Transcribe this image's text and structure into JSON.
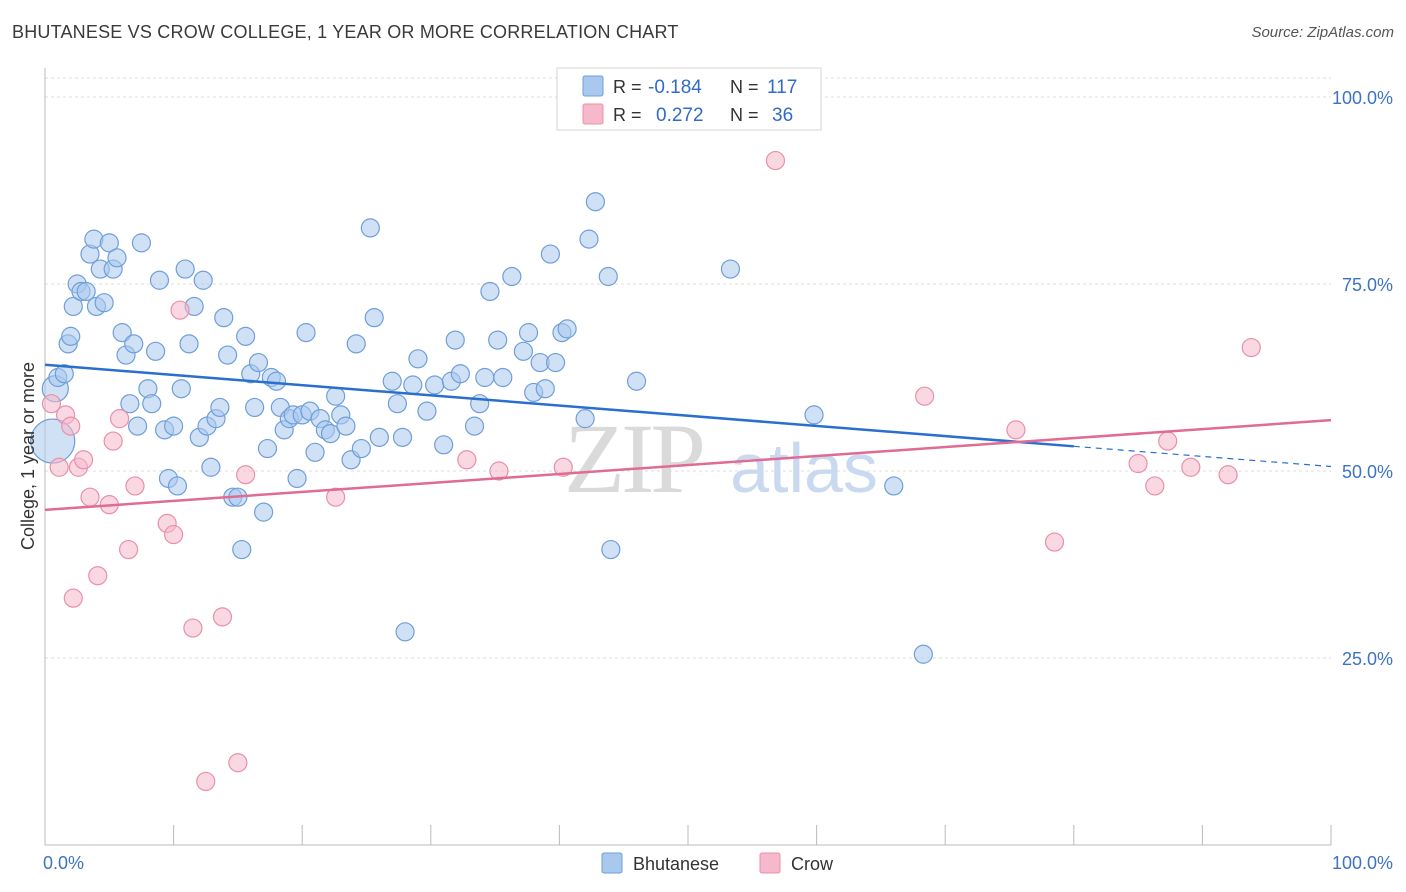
{
  "header": {
    "title": "BHUTANESE VS CROW COLLEGE, 1 YEAR OR MORE CORRELATION CHART",
    "source": "Source: ZipAtlas.com"
  },
  "colors": {
    "blue_fill": "#a9c8ee",
    "blue_stroke": "#6f9fd8",
    "blue_line": "#2b6fce",
    "pink_fill": "#f6b8cb",
    "pink_stroke": "#e890ab",
    "pink_line": "#e06b93",
    "tick_label": "#3d73c2",
    "grid": "#dddddd"
  },
  "chart_data": {
    "type": "scatter",
    "title": "BHUTANESE VS CROW COLLEGE, 1 YEAR OR MORE CORRELATION CHART",
    "xlabel": "",
    "ylabel": "College, 1 year or more",
    "xlim": [
      0,
      100
    ],
    "ylim": [
      0,
      105
    ],
    "x_tick_labels": [
      "0.0%",
      "100.0%"
    ],
    "y_ticks": [
      25,
      50,
      75,
      100
    ],
    "y_tick_labels": [
      "25.0%",
      "50.0%",
      "75.0%",
      "100.0%"
    ],
    "grid": true,
    "legend_placement": "top-center",
    "watermark": {
      "zip": "ZIP",
      "atlas": "atlas"
    },
    "stats": [
      {
        "r_label": "R =",
        "r_value": "-0.184",
        "n_label": "N =",
        "n_value": "117"
      },
      {
        "r_label": "R =",
        "r_value": "0.272",
        "n_label": "N =",
        "n_value": "36"
      }
    ],
    "series": [
      {
        "name": "Bhutanese",
        "trend": {
          "x": [
            0,
            80
          ],
          "y": [
            64.2,
            53.3
          ],
          "dashed_extension": [
            80,
            100,
            53.3,
            50.6
          ]
        },
        "points": [
          [
            0.6,
            54
          ],
          [
            0.8,
            61
          ],
          [
            1.0,
            62.5
          ],
          [
            1.5,
            63
          ],
          [
            1.8,
            67
          ],
          [
            2,
            68
          ],
          [
            2.2,
            72
          ],
          [
            2.5,
            75
          ],
          [
            2.8,
            74
          ],
          [
            3.2,
            74
          ],
          [
            3.5,
            79
          ],
          [
            3.8,
            81
          ],
          [
            4,
            72
          ],
          [
            4.3,
            77
          ],
          [
            4.6,
            72.5
          ],
          [
            5,
            80.5
          ],
          [
            5.3,
            77
          ],
          [
            5.6,
            78.5
          ],
          [
            6,
            68.5
          ],
          [
            6.3,
            65.5
          ],
          [
            6.6,
            59
          ],
          [
            6.9,
            67
          ],
          [
            7.2,
            56
          ],
          [
            7.5,
            80.5
          ],
          [
            8,
            61
          ],
          [
            8.3,
            59
          ],
          [
            8.6,
            66
          ],
          [
            8.9,
            75.5
          ],
          [
            9.3,
            55.5
          ],
          [
            9.6,
            49
          ],
          [
            10,
            56
          ],
          [
            10.3,
            48
          ],
          [
            10.6,
            61
          ],
          [
            10.9,
            77
          ],
          [
            11.2,
            67
          ],
          [
            11.6,
            72
          ],
          [
            12,
            54.5
          ],
          [
            12.3,
            75.5
          ],
          [
            12.6,
            56
          ],
          [
            12.9,
            50.5
          ],
          [
            13.3,
            57
          ],
          [
            13.6,
            58.5
          ],
          [
            13.9,
            70.5
          ],
          [
            14.2,
            65.5
          ],
          [
            14.6,
            46.5
          ],
          [
            15,
            46.5
          ],
          [
            15.3,
            39.5
          ],
          [
            15.6,
            68
          ],
          [
            16,
            63
          ],
          [
            16.3,
            58.5
          ],
          [
            16.6,
            64.5
          ],
          [
            17,
            44.5
          ],
          [
            17.3,
            53
          ],
          [
            17.6,
            62.5
          ],
          [
            18,
            62
          ],
          [
            18.3,
            58.5
          ],
          [
            18.6,
            55.5
          ],
          [
            19,
            57
          ],
          [
            19.3,
            57.5
          ],
          [
            19.6,
            49
          ],
          [
            20,
            57.5
          ],
          [
            20.3,
            68.5
          ],
          [
            20.6,
            58
          ],
          [
            21,
            52.5
          ],
          [
            21.4,
            57
          ],
          [
            21.8,
            55.5
          ],
          [
            22.2,
            55
          ],
          [
            22.6,
            60
          ],
          [
            23,
            57.5
          ],
          [
            23.4,
            56
          ],
          [
            23.8,
            51.5
          ],
          [
            24.2,
            67
          ],
          [
            24.6,
            53
          ],
          [
            25.3,
            82.5
          ],
          [
            25.6,
            70.5
          ],
          [
            26,
            54.5
          ],
          [
            27,
            62
          ],
          [
            27.4,
            59
          ],
          [
            27.8,
            54.5
          ],
          [
            28,
            28.5
          ],
          [
            28.6,
            61.5
          ],
          [
            29,
            65
          ],
          [
            29.7,
            58
          ],
          [
            30.3,
            61.5
          ],
          [
            31,
            53.5
          ],
          [
            31.6,
            62
          ],
          [
            31.9,
            67.5
          ],
          [
            32.3,
            63
          ],
          [
            33.4,
            56
          ],
          [
            33.8,
            59
          ],
          [
            34.2,
            62.5
          ],
          [
            34.6,
            74
          ],
          [
            35.2,
            67.5
          ],
          [
            35.6,
            62.5
          ],
          [
            36.3,
            76
          ],
          [
            37.2,
            66
          ],
          [
            37.6,
            68.5
          ],
          [
            38,
            60.5
          ],
          [
            38.5,
            64.5
          ],
          [
            38.9,
            61
          ],
          [
            39.3,
            79
          ],
          [
            39.7,
            64.5
          ],
          [
            40.2,
            68.5
          ],
          [
            40.6,
            69
          ],
          [
            42,
            57
          ],
          [
            42.3,
            81
          ],
          [
            42.8,
            86
          ],
          [
            43.8,
            76
          ],
          [
            44,
            39.5
          ],
          [
            46,
            62
          ],
          [
            53.3,
            77
          ],
          [
            59.8,
            57.5
          ],
          [
            66,
            48
          ],
          [
            68.3,
            25.5
          ]
        ]
      },
      {
        "name": "Crow",
        "trend": {
          "x": [
            0,
            100
          ],
          "y": [
            44.8,
            56.8
          ]
        },
        "points": [
          [
            0.5,
            59
          ],
          [
            1.1,
            50.5
          ],
          [
            1.6,
            57.5
          ],
          [
            2.0,
            56
          ],
          [
            2.2,
            33
          ],
          [
            2.6,
            50.5
          ],
          [
            3.0,
            51.5
          ],
          [
            3.5,
            46.5
          ],
          [
            4.1,
            36
          ],
          [
            5.0,
            45.5
          ],
          [
            5.3,
            54
          ],
          [
            5.8,
            57
          ],
          [
            6.5,
            39.5
          ],
          [
            7.0,
            48
          ],
          [
            9.5,
            43
          ],
          [
            10,
            41.5
          ],
          [
            10.5,
            71.5
          ],
          [
            11.5,
            29
          ],
          [
            12.5,
            8.5
          ],
          [
            13.8,
            30.5
          ],
          [
            15,
            11
          ],
          [
            15.6,
            49.5
          ],
          [
            22.6,
            46.5
          ],
          [
            32.8,
            51.5
          ],
          [
            35.3,
            50
          ],
          [
            40.3,
            50.5
          ],
          [
            56.8,
            91.5
          ],
          [
            68.4,
            60
          ],
          [
            75.5,
            55.5
          ],
          [
            78.5,
            40.5
          ],
          [
            85,
            51
          ],
          [
            86.3,
            48
          ],
          [
            87.3,
            54
          ],
          [
            89.1,
            50.5
          ],
          [
            92,
            49.5
          ],
          [
            93.8,
            66.5
          ]
        ]
      }
    ]
  }
}
